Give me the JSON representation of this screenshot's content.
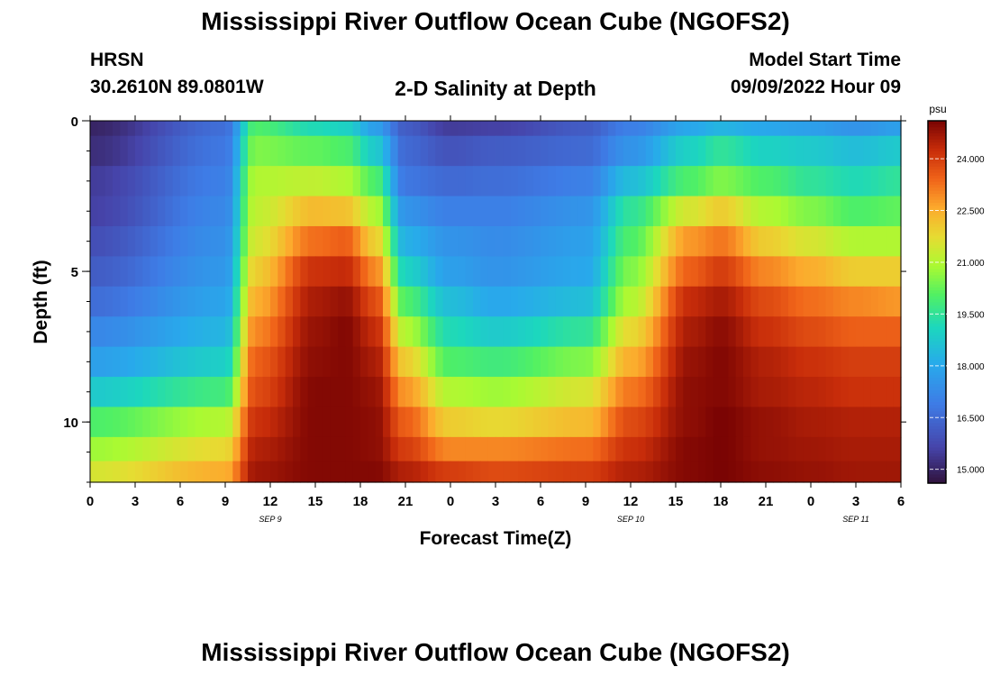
{
  "header": {
    "main_title": "Mississippi River Outflow Ocean Cube (NGOFS2)",
    "station": "HRSN",
    "coords": "30.2610N  89.0801W",
    "plot_title": "2-D Salinity at Depth",
    "model_start_label": "Model Start Time",
    "model_start_value": "09/09/2022 Hour 09"
  },
  "footer": {
    "title": "Mississippi River Outflow Ocean Cube (NGOFS2)"
  },
  "chart_data": {
    "type": "heatmap",
    "title": "2-D Salinity at Depth",
    "xlabel": "Forecast Time(Z)",
    "ylabel": "Depth (ft)",
    "units": "psu",
    "x_range_hours": [
      0,
      54
    ],
    "x_tick_labels": [
      "0",
      "3",
      "6",
      "9",
      "12",
      "15",
      "18",
      "21",
      "0",
      "3",
      "6",
      "9",
      "12",
      "15",
      "18",
      "21",
      "0",
      "3",
      "6"
    ],
    "date_labels": [
      {
        "hour": 12,
        "label": "SEP 9"
      },
      {
        "hour": 36,
        "label": "SEP 10"
      },
      {
        "hour": 51,
        "label": "SEP 11"
      }
    ],
    "y_range_ft": [
      0,
      12.0
    ],
    "y_ticks": [
      0,
      5,
      10
    ],
    "y_minor_step": 1,
    "colorbar": {
      "label": "psu",
      "min": 14.6,
      "max": 25.1,
      "ticks": [
        15.0,
        16.5,
        18.0,
        19.5,
        21.0,
        22.5,
        24.0
      ],
      "tick_labels": [
        "15.000",
        "16.500",
        "18.000",
        "19.500",
        "21.000",
        "22.500",
        "24.000"
      ]
    },
    "depth_levels_ft": [
      0,
      1,
      2,
      3,
      4,
      5,
      6,
      7,
      8,
      9,
      10,
      11,
      11.6
    ],
    "key_times_hours": [
      0,
      9,
      11,
      15,
      17,
      19,
      21,
      24,
      27,
      33,
      36,
      40,
      42,
      45,
      48,
      51,
      54
    ],
    "salinity_psu": [
      [
        15.0,
        16.6,
        20.0,
        19.2,
        19.0,
        17.8,
        16.2,
        15.5,
        15.6,
        16.2,
        17.0,
        18.0,
        18.3,
        18.0,
        17.8,
        17.5,
        17.8
      ],
      [
        15.2,
        16.8,
        20.5,
        20.2,
        20.0,
        18.8,
        16.5,
        16.0,
        16.2,
        16.5,
        17.5,
        19.0,
        19.5,
        19.0,
        18.8,
        18.5,
        18.8
      ],
      [
        15.5,
        17.0,
        21.0,
        21.2,
        21.0,
        20.0,
        16.8,
        16.5,
        16.6,
        17.0,
        18.5,
        20.0,
        20.5,
        20.0,
        19.5,
        19.2,
        19.5
      ],
      [
        15.6,
        17.2,
        21.2,
        22.3,
        22.2,
        21.0,
        17.5,
        17.0,
        17.0,
        17.5,
        19.5,
        21.5,
        22.0,
        21.0,
        20.5,
        20.0,
        20.2
      ],
      [
        15.9,
        17.4,
        21.5,
        23.3,
        23.5,
        22.0,
        18.2,
        17.5,
        17.3,
        17.8,
        20.0,
        22.8,
        23.2,
        22.0,
        21.5,
        21.0,
        21.0
      ],
      [
        16.2,
        17.6,
        22.0,
        24.2,
        24.3,
        23.0,
        19.0,
        17.8,
        17.5,
        18.0,
        20.5,
        23.5,
        24.0,
        23.0,
        22.5,
        22.0,
        22.0
      ],
      [
        16.6,
        17.9,
        22.5,
        24.6,
        24.8,
        23.8,
        20.0,
        18.5,
        18.0,
        18.5,
        21.0,
        24.3,
        24.6,
        23.8,
        23.3,
        23.0,
        22.8
      ],
      [
        17.2,
        18.3,
        23.0,
        24.8,
        25.0,
        24.3,
        21.0,
        19.2,
        18.8,
        19.5,
        21.8,
        24.6,
        24.9,
        24.2,
        23.8,
        23.5,
        23.5
      ],
      [
        17.8,
        18.9,
        23.5,
        24.9,
        25.0,
        24.6,
        22.0,
        20.0,
        19.8,
        20.5,
        22.5,
        24.8,
        25.0,
        24.5,
        24.2,
        24.0,
        24.0
      ],
      [
        18.8,
        19.8,
        23.8,
        25.0,
        25.0,
        24.8,
        22.8,
        21.0,
        20.8,
        21.5,
        23.2,
        24.9,
        25.0,
        24.6,
        24.4,
        24.2,
        24.2
      ],
      [
        20.0,
        21.0,
        24.2,
        25.0,
        25.0,
        24.9,
        23.5,
        22.0,
        21.8,
        22.3,
        23.8,
        24.9,
        25.1,
        24.8,
        24.6,
        24.5,
        24.5
      ],
      [
        20.8,
        21.8,
        24.5,
        25.0,
        25.0,
        24.9,
        24.0,
        23.0,
        23.0,
        23.3,
        24.2,
        25.0,
        25.1,
        24.8,
        24.7,
        24.6,
        24.6
      ],
      [
        21.5,
        22.5,
        24.7,
        25.0,
        25.0,
        25.0,
        24.5,
        24.0,
        23.8,
        24.0,
        24.5,
        25.0,
        25.1,
        24.9,
        24.8,
        24.7,
        24.7
      ]
    ]
  }
}
